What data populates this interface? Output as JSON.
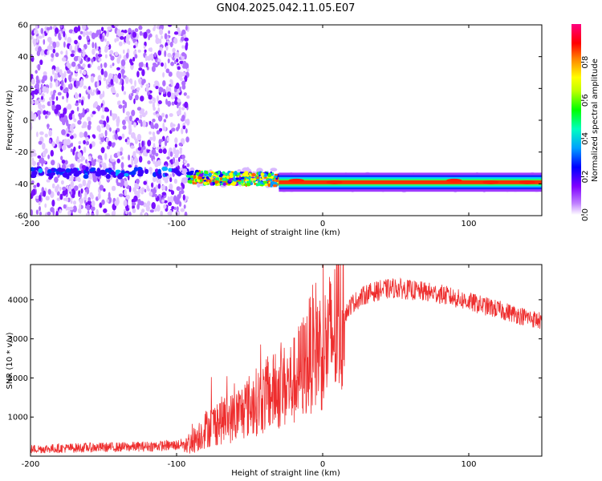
{
  "figure": {
    "title": "GN04.2025.042.11.05.E07"
  },
  "chart_data": [
    {
      "type": "heatmap",
      "title": "GN04.2025.042.11.05.E07",
      "xlabel": "Height of straight line (km)",
      "ylabel": "Frequency (Hz)",
      "xlim": [
        -200,
        150
      ],
      "ylim": [
        -60,
        60
      ],
      "x_ticks": [
        -200,
        -100,
        0,
        100
      ],
      "y_ticks": [
        -60,
        -40,
        -20,
        0,
        20,
        40,
        60
      ],
      "colorbar": {
        "label": "Normalized spectral amplitude",
        "range": [
          0.0,
          1.0
        ],
        "ticks": [
          0.0,
          0.2,
          0.4,
          0.6,
          0.8
        ],
        "colormap": [
          "#ffffff",
          "#a000ff",
          "#0000ff",
          "#00d0ff",
          "#00ff40",
          "#ffff00",
          "#ff0000",
          "#ff0090"
        ]
      },
      "regions": [
        {
          "name": "noise",
          "x_range": [
            -200,
            -92
          ],
          "freq_range": [
            -60,
            60
          ],
          "amplitude": 0.1
        },
        {
          "name": "signal band",
          "x_range": [
            -92,
            -30
          ],
          "freq_center": -36,
          "amplitude": 0.5
        },
        {
          "name": "signal band",
          "x_range": [
            -30,
            150
          ],
          "freq_center": -39,
          "amplitude": 0.95
        }
      ],
      "grid": false
    },
    {
      "type": "line",
      "xlabel": "Height of straight line (km)",
      "ylabel": "SNR (10 * v/v)",
      "xlim": [
        -200,
        150
      ],
      "ylim": [
        0,
        4900
      ],
      "x_ticks": [
        -200,
        -100,
        0,
        100
      ],
      "y_ticks": [
        1000,
        2000,
        3000,
        4000
      ],
      "color": "#ee2e2e",
      "grid": false,
      "series": [
        {
          "x": [
            -200,
            -180,
            -160,
            -140,
            -120,
            -100,
            -90,
            -80,
            -70,
            -60,
            -50,
            -40,
            -30,
            -20,
            -10,
            -5,
            0,
            5,
            10,
            20,
            30,
            40,
            50,
            60,
            70,
            80,
            90,
            100,
            110,
            120,
            130,
            140,
            150
          ],
          "y": [
            180,
            200,
            220,
            230,
            250,
            280,
            350,
            700,
            900,
            1000,
            1300,
            1500,
            1700,
            1900,
            2500,
            2900,
            2700,
            3000,
            3300,
            3900,
            4150,
            4250,
            4300,
            4250,
            4200,
            4150,
            4050,
            3950,
            3850,
            3750,
            3650,
            3550,
            3450
          ]
        }
      ]
    }
  ]
}
